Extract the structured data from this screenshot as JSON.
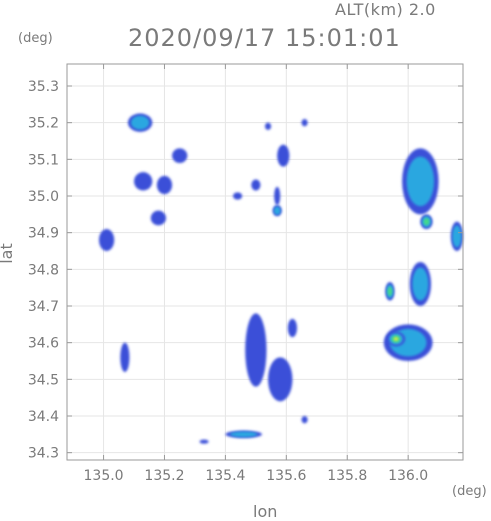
{
  "header": {
    "altitude_label": "ALT(km) 2.0",
    "timestamp_title": "2020/09/17 15:01:01"
  },
  "chart_data": {
    "type": "heatmap",
    "title": "2020/09/17 15:01:01",
    "subtitle": "ALT(km) 2.0",
    "xlabel": "lon",
    "ylabel": "lat",
    "x_unit": "(deg)",
    "y_unit": "(deg)",
    "xlim": [
      134.88,
      136.18
    ],
    "ylim": [
      34.28,
      35.36
    ],
    "x_ticks": [
      135.0,
      135.2,
      135.4,
      135.6,
      135.8,
      136.0
    ],
    "x_tick_labels": [
      "135.0",
      "135.2",
      "135.4",
      "135.6",
      "135.8",
      "136.0"
    ],
    "y_ticks": [
      34.3,
      34.4,
      34.5,
      34.6,
      34.7,
      34.8,
      34.9,
      35.0,
      35.1,
      35.2,
      35.3
    ],
    "y_tick_labels": [
      "34.3",
      "34.4",
      "34.5",
      "34.6",
      "34.7",
      "34.8",
      "34.9",
      "35.0",
      "35.1",
      "35.2",
      "35.3"
    ],
    "grid": true,
    "colors": {
      "low": "#3b4fd8",
      "mid": "#2aa7e0",
      "high": "#45d98a",
      "peak": "#d8e64a",
      "axis": "#9a9a9a",
      "grid": "#e6e6e6"
    },
    "echo_cells": [
      {
        "lon": 135.12,
        "lat": 35.2,
        "w": 0.08,
        "h": 0.05,
        "level": 2
      },
      {
        "lon": 135.25,
        "lat": 35.11,
        "w": 0.05,
        "h": 0.04,
        "level": 1
      },
      {
        "lon": 135.13,
        "lat": 35.04,
        "w": 0.06,
        "h": 0.05,
        "level": 1
      },
      {
        "lon": 135.2,
        "lat": 35.03,
        "w": 0.05,
        "h": 0.05,
        "level": 1
      },
      {
        "lon": 135.18,
        "lat": 34.94,
        "w": 0.05,
        "h": 0.04,
        "level": 1
      },
      {
        "lon": 135.01,
        "lat": 34.88,
        "w": 0.05,
        "h": 0.06,
        "level": 1
      },
      {
        "lon": 135.44,
        "lat": 35.0,
        "w": 0.03,
        "h": 0.02,
        "level": 1
      },
      {
        "lon": 135.54,
        "lat": 35.19,
        "w": 0.02,
        "h": 0.02,
        "level": 1
      },
      {
        "lon": 135.66,
        "lat": 35.2,
        "w": 0.02,
        "h": 0.02,
        "level": 1
      },
      {
        "lon": 135.59,
        "lat": 35.11,
        "w": 0.04,
        "h": 0.06,
        "level": 1
      },
      {
        "lon": 135.5,
        "lat": 35.03,
        "w": 0.03,
        "h": 0.03,
        "level": 1
      },
      {
        "lon": 135.57,
        "lat": 34.96,
        "w": 0.03,
        "h": 0.03,
        "level": 2
      },
      {
        "lon": 135.57,
        "lat": 35.0,
        "w": 0.02,
        "h": 0.05,
        "level": 1
      },
      {
        "lon": 136.04,
        "lat": 35.04,
        "w": 0.12,
        "h": 0.18,
        "level": 2
      },
      {
        "lon": 136.06,
        "lat": 34.93,
        "w": 0.04,
        "h": 0.04,
        "level": 3
      },
      {
        "lon": 136.16,
        "lat": 34.89,
        "w": 0.04,
        "h": 0.08,
        "level": 2
      },
      {
        "lon": 136.04,
        "lat": 34.76,
        "w": 0.07,
        "h": 0.12,
        "level": 2
      },
      {
        "lon": 135.94,
        "lat": 34.74,
        "w": 0.03,
        "h": 0.05,
        "level": 3
      },
      {
        "lon": 136.0,
        "lat": 34.6,
        "w": 0.16,
        "h": 0.1,
        "level": 2
      },
      {
        "lon": 135.96,
        "lat": 34.61,
        "w": 0.06,
        "h": 0.04,
        "level": 4
      },
      {
        "lon": 135.07,
        "lat": 34.56,
        "w": 0.03,
        "h": 0.08,
        "level": 1
      },
      {
        "lon": 135.5,
        "lat": 34.58,
        "w": 0.07,
        "h": 0.2,
        "level": 1
      },
      {
        "lon": 135.58,
        "lat": 34.5,
        "w": 0.08,
        "h": 0.12,
        "level": 1
      },
      {
        "lon": 135.62,
        "lat": 34.64,
        "w": 0.03,
        "h": 0.05,
        "level": 1
      },
      {
        "lon": 135.66,
        "lat": 34.39,
        "w": 0.02,
        "h": 0.02,
        "level": 1
      },
      {
        "lon": 135.46,
        "lat": 34.35,
        "w": 0.12,
        "h": 0.02,
        "level": 2
      },
      {
        "lon": 135.33,
        "lat": 34.33,
        "w": 0.03,
        "h": 0.01,
        "level": 1
      }
    ]
  }
}
